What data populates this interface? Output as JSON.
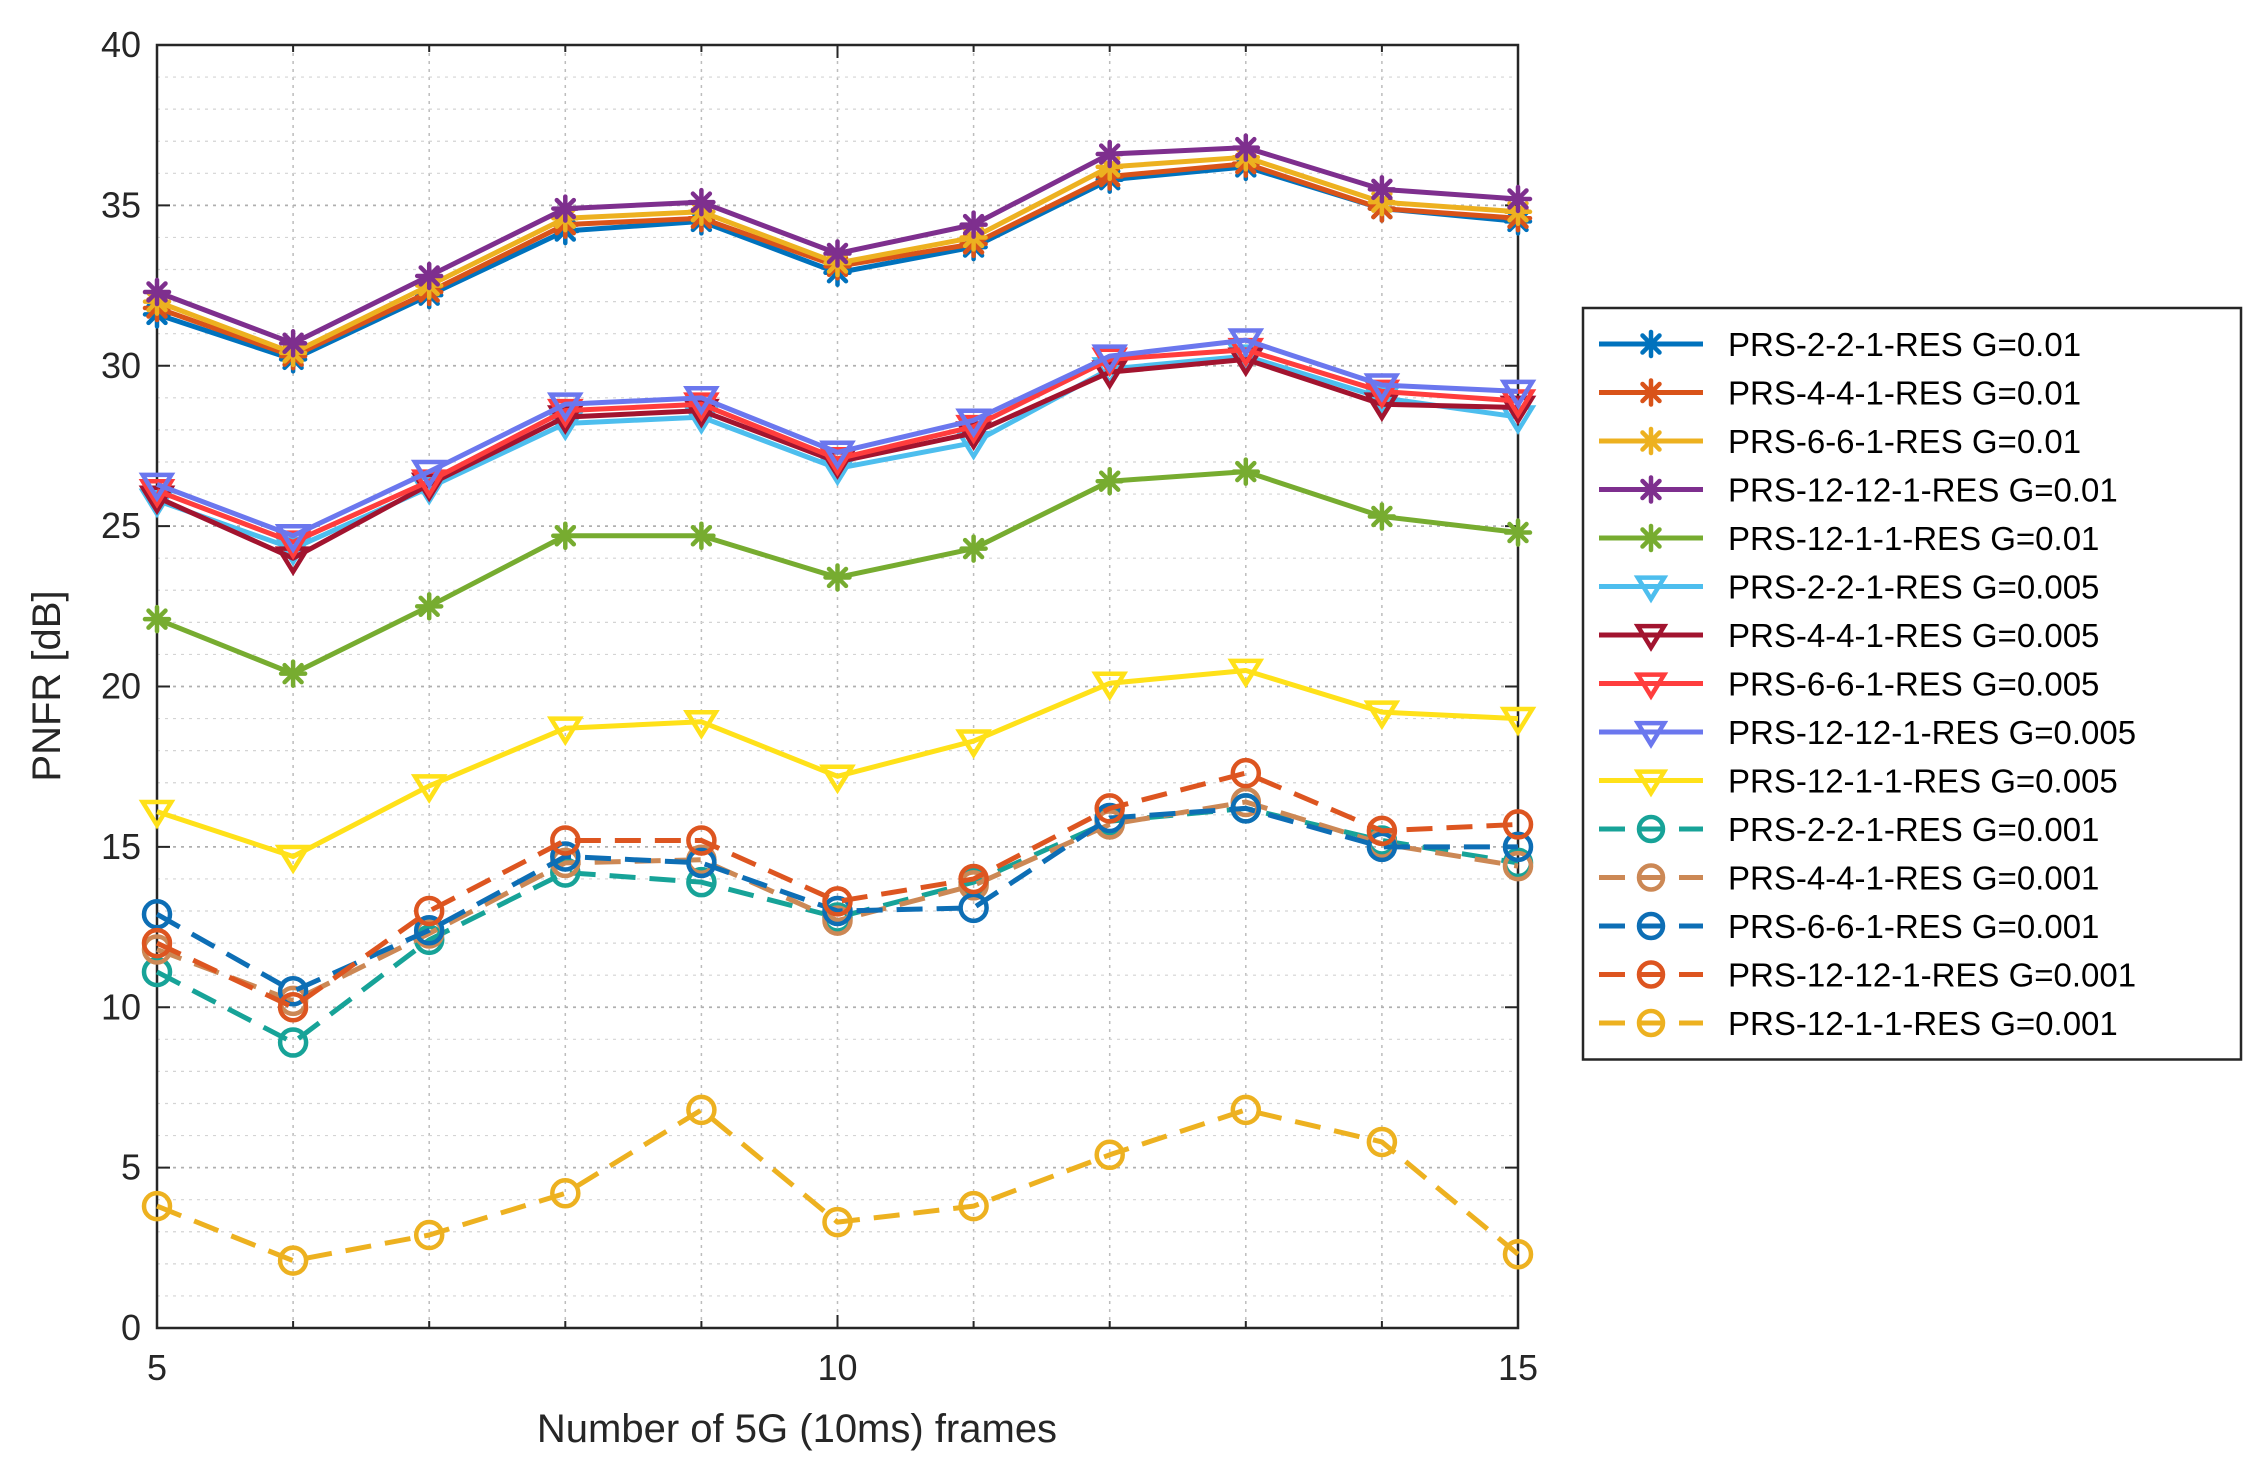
{
  "chart_data": {
    "type": "line",
    "title": "",
    "xlabel": "Number of 5G (10ms) frames",
    "ylabel": "PNFR [dB]",
    "xlim": [
      5,
      15
    ],
    "ylim": [
      0,
      40
    ],
    "xticks": [
      5,
      10,
      15
    ],
    "yticks": [
      0,
      5,
      10,
      15,
      20,
      25,
      30,
      35,
      40
    ],
    "grid": "major and minor, dotted",
    "legend_position": "outside right",
    "x": [
      5,
      6,
      7,
      8,
      9,
      10,
      11,
      12,
      13,
      14,
      15
    ],
    "series": [
      {
        "name": "PRS-2-2-1-RES G=0.01",
        "color": "#0072BD",
        "dash": "solid",
        "marker": "asterisk",
        "values": [
          31.6,
          30.2,
          32.2,
          34.2,
          34.5,
          32.9,
          33.7,
          35.8,
          36.2,
          34.9,
          34.5
        ]
      },
      {
        "name": "PRS-4-4-1-RES G=0.01",
        "color": "#D95319",
        "dash": "solid",
        "marker": "asterisk",
        "values": [
          31.8,
          30.3,
          32.3,
          34.4,
          34.6,
          33.1,
          33.8,
          35.9,
          36.3,
          34.9,
          34.6
        ]
      },
      {
        "name": "PRS-6-6-1-RES G=0.01",
        "color": "#EDB120",
        "dash": "solid",
        "marker": "asterisk",
        "values": [
          32.0,
          30.4,
          32.5,
          34.6,
          34.8,
          33.2,
          34.0,
          36.2,
          36.5,
          35.1,
          34.8
        ]
      },
      {
        "name": "PRS-12-12-1-RES G=0.01",
        "color": "#7E2F8E",
        "dash": "solid",
        "marker": "asterisk",
        "values": [
          32.3,
          30.7,
          32.8,
          34.9,
          35.1,
          33.5,
          34.4,
          36.6,
          36.8,
          35.5,
          35.2
        ]
      },
      {
        "name": "PRS-12-1-1-RES G=0.01",
        "color": "#77AC30",
        "dash": "solid",
        "marker": "asterisk",
        "values": [
          22.1,
          20.4,
          22.5,
          24.7,
          24.7,
          23.4,
          24.3,
          26.4,
          26.7,
          25.3,
          24.8
        ]
      },
      {
        "name": "PRS-2-2-1-RES G=0.005",
        "color": "#4DBEEE",
        "dash": "solid",
        "marker": "triangle-down",
        "values": [
          25.8,
          24.3,
          26.2,
          28.2,
          28.4,
          26.8,
          27.6,
          29.9,
          30.3,
          29.0,
          28.4
        ]
      },
      {
        "name": "PRS-4-4-1-RES G=0.005",
        "color": "#A2142F",
        "dash": "solid",
        "marker": "triangle-down",
        "values": [
          25.9,
          24.0,
          26.3,
          28.4,
          28.6,
          27.0,
          27.9,
          29.8,
          30.2,
          28.8,
          28.7
        ]
      },
      {
        "name": "PRS-6-6-1-RES G=0.005",
        "color": "#FF3D3D",
        "dash": "solid",
        "marker": "triangle-down",
        "values": [
          26.1,
          24.5,
          26.4,
          28.6,
          28.8,
          27.1,
          28.1,
          30.2,
          30.5,
          29.2,
          28.9
        ]
      },
      {
        "name": "PRS-12-12-1-RES G=0.005",
        "color": "#6B77EE",
        "dash": "solid",
        "marker": "triangle-down",
        "values": [
          26.3,
          24.7,
          26.7,
          28.8,
          29.0,
          27.3,
          28.3,
          30.3,
          30.8,
          29.4,
          29.2
        ]
      },
      {
        "name": "PRS-12-1-1-RES G=0.005",
        "color": "#FFE119",
        "dash": "solid",
        "marker": "triangle-down",
        "values": [
          16.1,
          14.7,
          16.9,
          18.7,
          18.9,
          17.2,
          18.3,
          20.1,
          20.5,
          19.2,
          19.0
        ]
      },
      {
        "name": "PRS-2-2-1-RES G=0.001",
        "color": "#17A398",
        "dash": "dashed",
        "marker": "circle",
        "values": [
          11.1,
          8.9,
          12.1,
          14.2,
          13.9,
          12.8,
          13.9,
          15.8,
          16.2,
          15.2,
          14.5
        ]
      },
      {
        "name": "PRS-4-4-1-RES G=0.001",
        "color": "#CC8855",
        "dash": "dashed",
        "marker": "circle",
        "values": [
          11.8,
          10.2,
          12.3,
          14.5,
          14.6,
          12.7,
          13.8,
          15.7,
          16.4,
          15.1,
          14.4
        ]
      },
      {
        "name": "PRS-6-6-1-RES G=0.001",
        "color": "#0D6EB5",
        "dash": "dashed",
        "marker": "circle",
        "values": [
          12.9,
          10.5,
          12.4,
          14.7,
          14.5,
          13.0,
          13.1,
          15.9,
          16.2,
          15.0,
          15.0
        ]
      },
      {
        "name": "PRS-12-12-1-RES G=0.001",
        "color": "#DD5520",
        "dash": "dashed",
        "marker": "circle",
        "values": [
          12.0,
          10.0,
          13.0,
          15.2,
          15.2,
          13.3,
          14.0,
          16.2,
          17.3,
          15.5,
          15.7
        ]
      },
      {
        "name": "PRS-12-1-1-RES G=0.001",
        "color": "#EDB120",
        "dash": "dashed",
        "marker": "circle",
        "values": [
          3.8,
          2.1,
          2.9,
          4.2,
          6.8,
          3.3,
          3.8,
          5.4,
          6.8,
          5.8,
          2.3
        ]
      }
    ]
  }
}
